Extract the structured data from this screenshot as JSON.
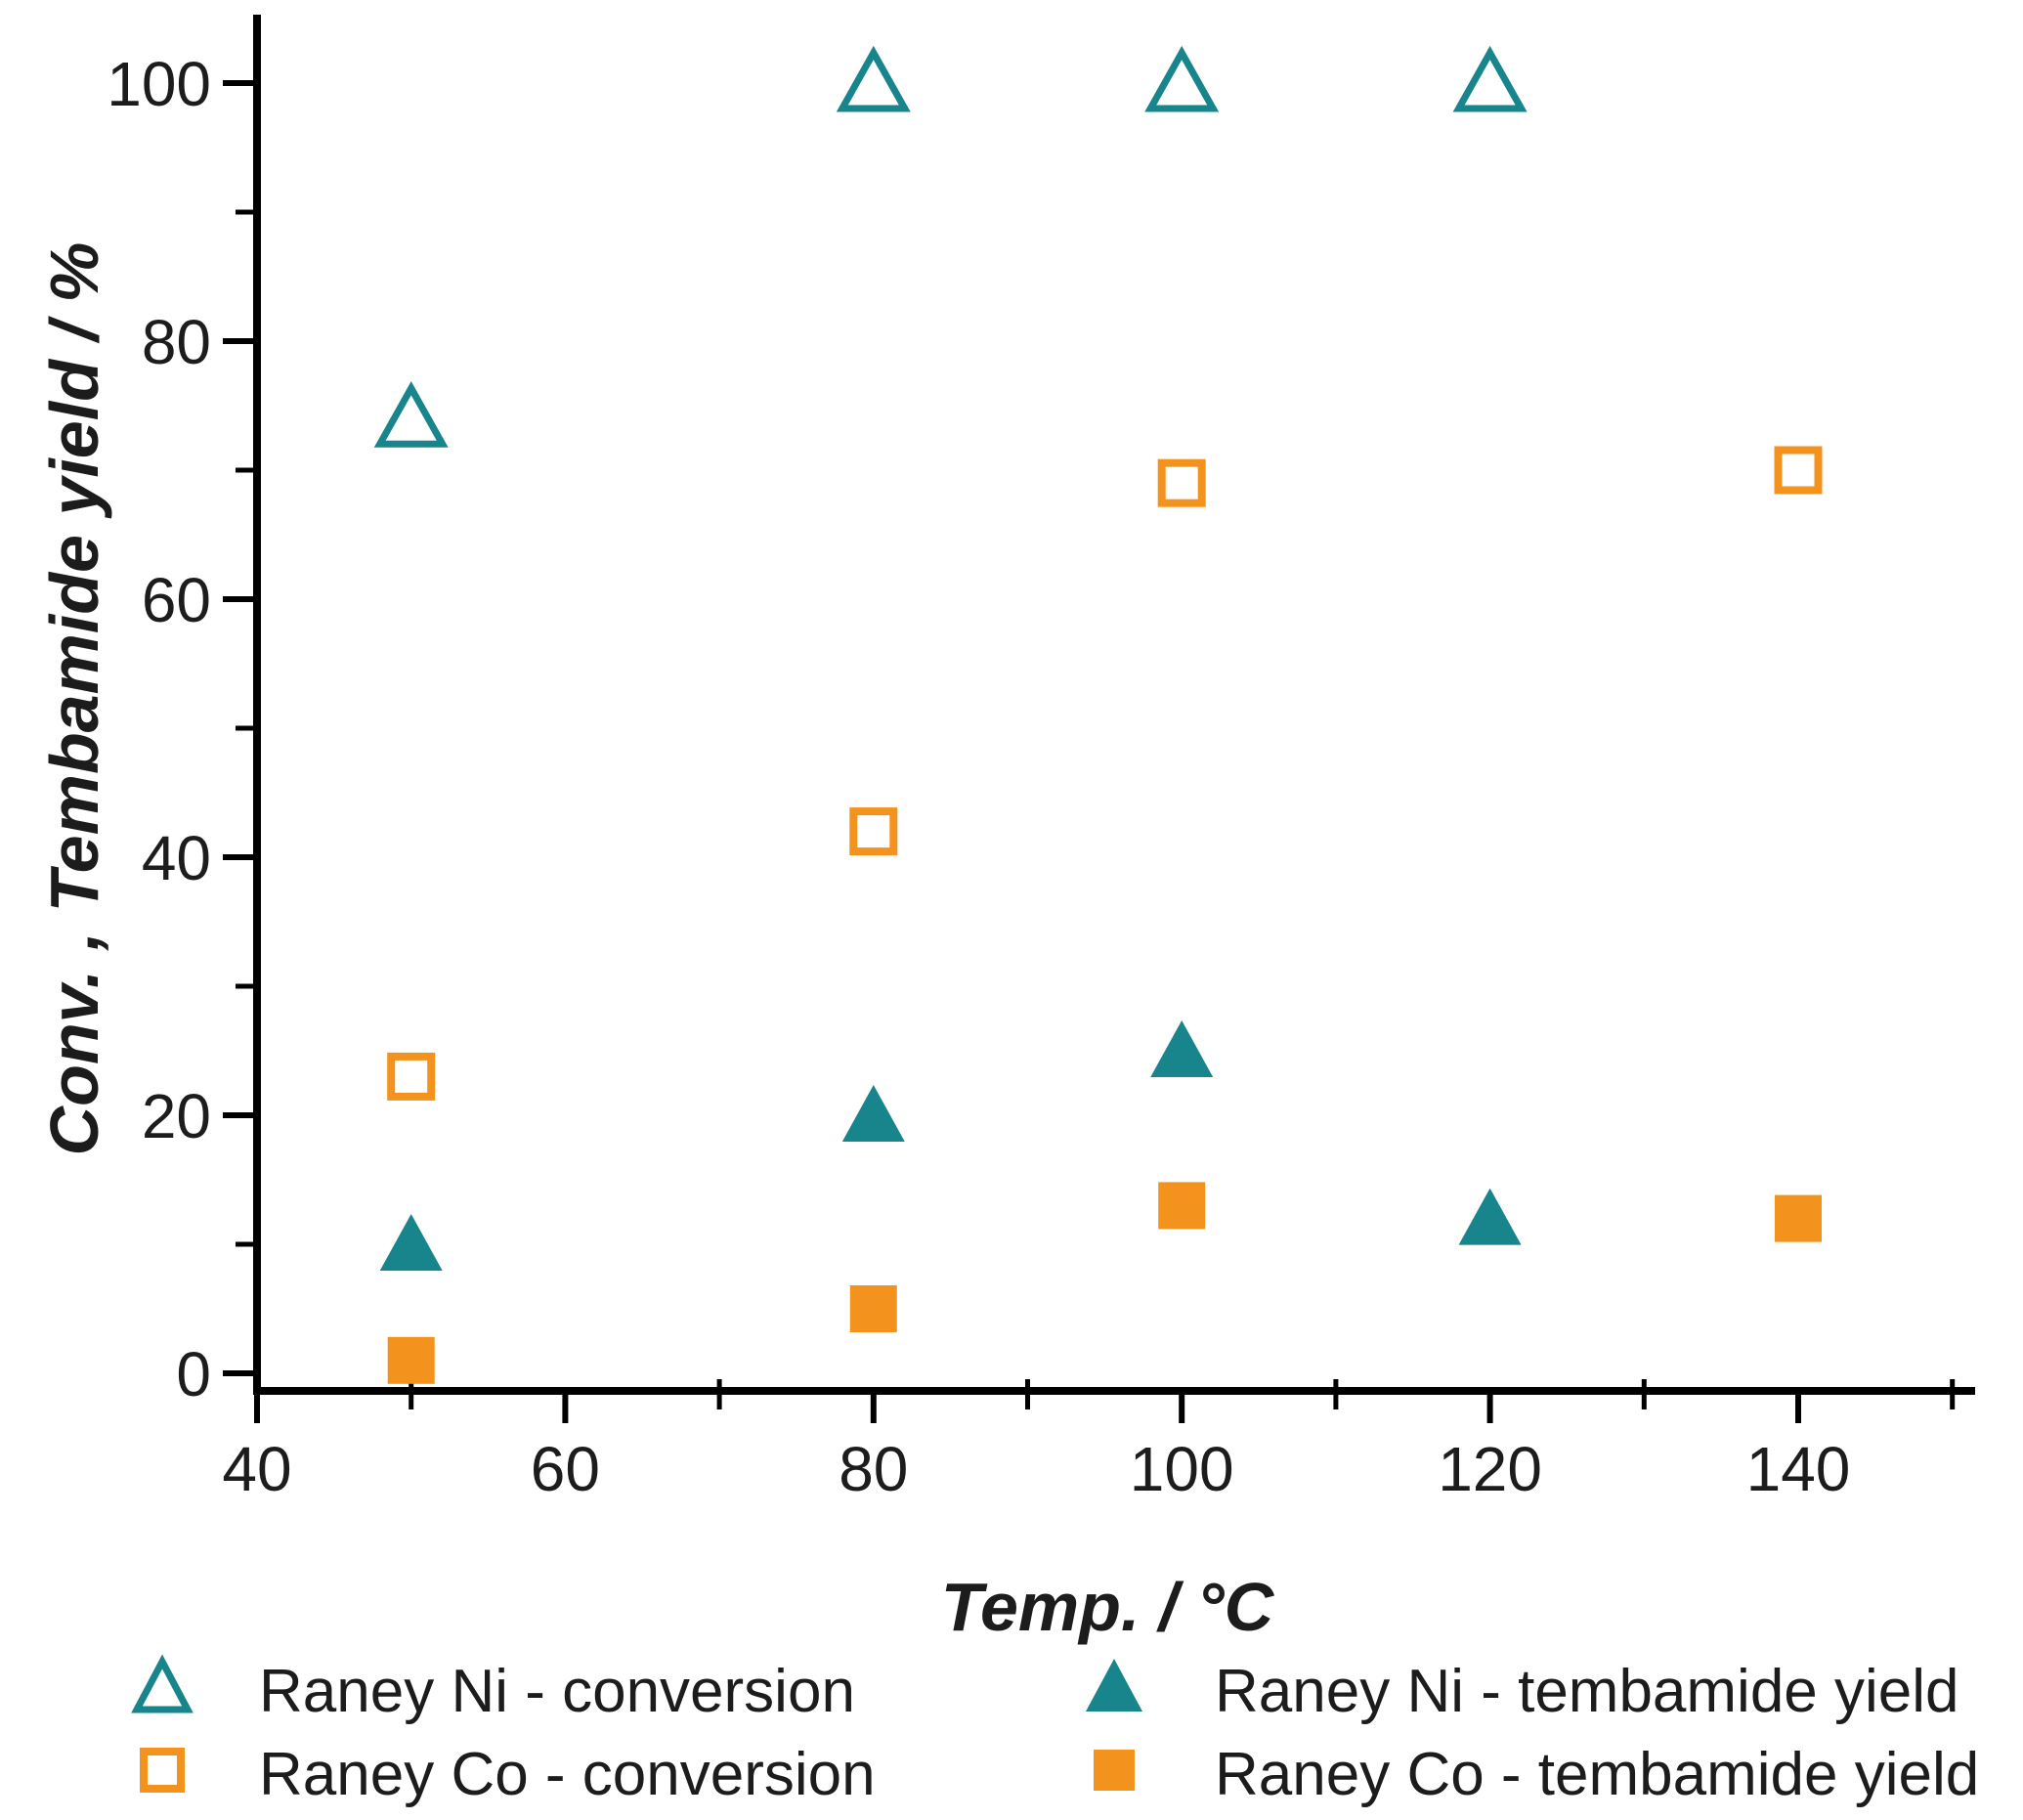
{
  "colors": {
    "teal": "#17858b",
    "orange": "#f4921e",
    "axis": "#000000",
    "text": "#1c1c1c",
    "background": "#ffffff"
  },
  "chart_data": {
    "type": "scatter",
    "title": "",
    "xlabel": "Temp. / °C",
    "ylabel": "Conv. , Tembamide yield / %",
    "xlim": [
      40,
      151
    ],
    "ylim": [
      0,
      105
    ],
    "grid": false,
    "legend_position": "bottom",
    "x_major_ticks": [
      40,
      60,
      80,
      100,
      120,
      140
    ],
    "x_minor_ticks": [
      50,
      70,
      90,
      110,
      130,
      150
    ],
    "y_major_ticks": [
      0,
      20,
      40,
      60,
      80,
      100
    ],
    "y_minor_ticks": [
      10,
      30,
      50,
      70,
      90
    ],
    "series": [
      {
        "name": "Raney Ni - conversion",
        "marker": "triangle-open",
        "color": "teal",
        "points": [
          [
            50,
            74
          ],
          [
            80,
            100
          ],
          [
            100,
            100
          ],
          [
            120,
            100
          ]
        ]
      },
      {
        "name": "Raney Ni - tembamide yield",
        "marker": "triangle-filled",
        "color": "teal",
        "points": [
          [
            50,
            10
          ],
          [
            80,
            20
          ],
          [
            100,
            25
          ],
          [
            120,
            12
          ]
        ]
      },
      {
        "name": "Raney Co - conversion",
        "marker": "square-open",
        "color": "orange",
        "points": [
          [
            50,
            23
          ],
          [
            80,
            42
          ],
          [
            100,
            69
          ],
          [
            140,
            70
          ]
        ]
      },
      {
        "name": "Raney Co - tembamide yield",
        "marker": "square-filled",
        "color": "orange",
        "points": [
          [
            50,
            1
          ],
          [
            80,
            5
          ],
          [
            100,
            13
          ],
          [
            140,
            12
          ]
        ]
      }
    ]
  },
  "legend": {
    "items": [
      {
        "label": "Raney Ni - conversion",
        "marker": "triangle-open"
      },
      {
        "label": "Raney Ni - tembamide yield",
        "marker": "triangle-filled"
      },
      {
        "label": "Raney Co - conversion",
        "marker": "square-open"
      },
      {
        "label": "Raney Co - tembamide yield",
        "marker": "square-filled"
      }
    ]
  }
}
